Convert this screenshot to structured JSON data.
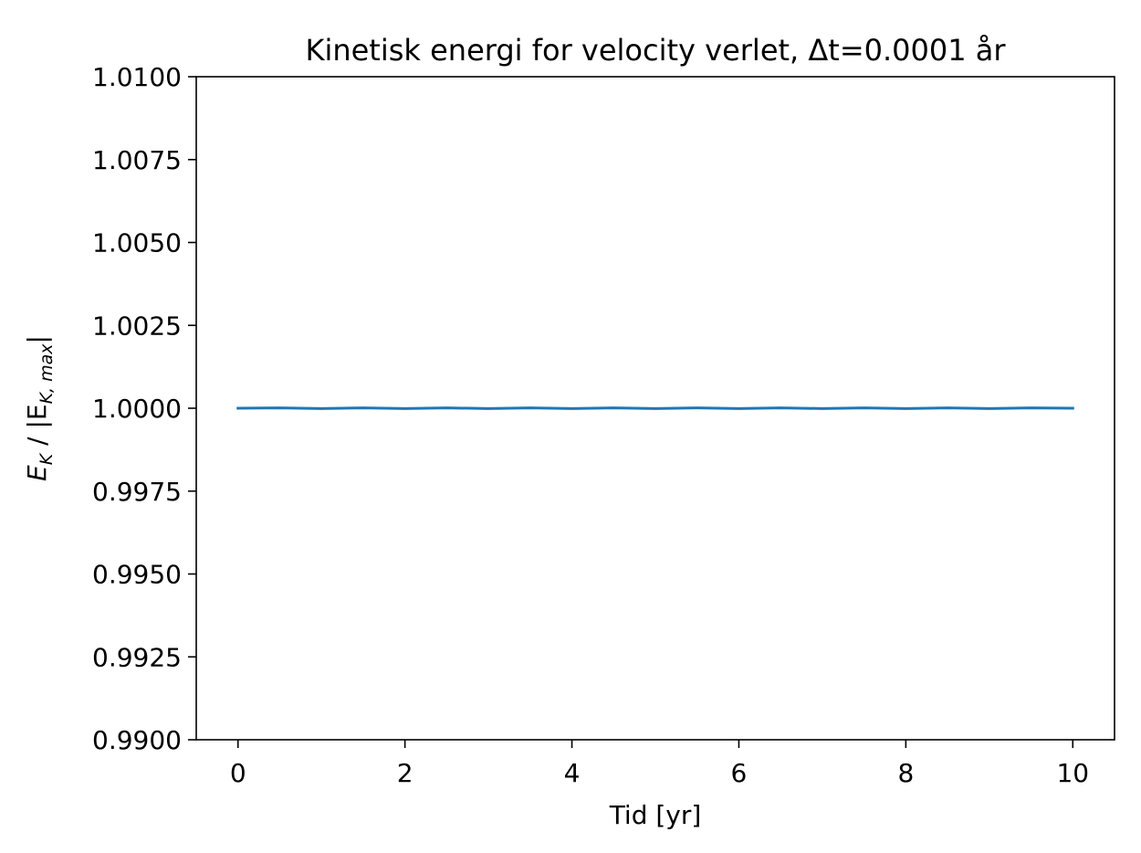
{
  "chart_data": {
    "type": "line",
    "title": "Kinetisk energi for velocity verlet, Δt=0.0001 år",
    "xlabel": "Tid [yr]",
    "ylabel": {
      "prefix": "E",
      "prefix_sub": "K",
      "middle": " / |E",
      "middle_sub": "K, max",
      "suffix": "|"
    },
    "xlim": [
      -0.5,
      10.5
    ],
    "ylim": [
      0.99,
      1.01
    ],
    "xticks": [
      0,
      2,
      4,
      6,
      8,
      10
    ],
    "xtick_labels": [
      "0",
      "2",
      "4",
      "6",
      "8",
      "10"
    ],
    "yticks": [
      0.99,
      0.9925,
      0.995,
      0.9975,
      1.0,
      1.0025,
      1.005,
      1.0075,
      1.01
    ],
    "ytick_labels": [
      "0.9900",
      "0.9925",
      "0.9950",
      "0.9975",
      "1.0000",
      "1.0025",
      "1.0050",
      "1.0075",
      "1.0100"
    ],
    "grid": false,
    "series": [
      {
        "color": "#1f77b4",
        "x": [
          0,
          0.5,
          1,
          1.5,
          2,
          2.5,
          3,
          3.5,
          4,
          4.5,
          5,
          5.5,
          6,
          6.5,
          7,
          7.5,
          8,
          8.5,
          9,
          9.5,
          10
        ],
        "y": [
          1.0,
          1.00001,
          0.99999,
          1.00001,
          0.99999,
          1.00001,
          0.99999,
          1.00001,
          0.99999,
          1.00001,
          0.99999,
          1.00001,
          0.99999,
          1.00001,
          0.99999,
          1.00001,
          0.99999,
          1.00001,
          0.99999,
          1.00001,
          1.0
        ]
      }
    ]
  }
}
